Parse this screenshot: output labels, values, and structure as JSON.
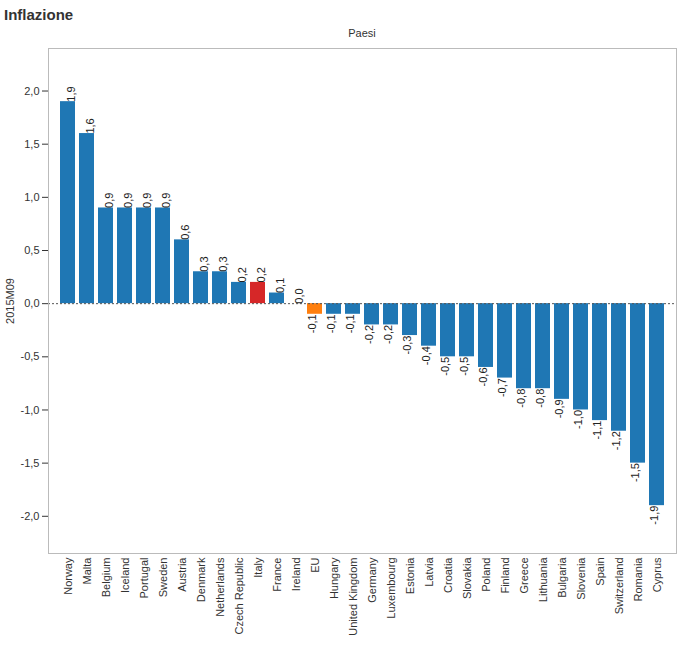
{
  "chart_data": {
    "type": "bar",
    "title": "Inflazione",
    "x_label": "Paesi",
    "y_label": "2015M09",
    "categories": [
      "Norway",
      "Malta",
      "Belgium",
      "Iceland",
      "Portugal",
      "Sweden",
      "Austria",
      "Denmark",
      "Netherlands",
      "Czech Republic",
      "Italy",
      "France",
      "Ireland",
      "EU",
      "Hungary",
      "United Kingdom",
      "Germany",
      "Luxembourg",
      "Estonia",
      "Latvia",
      "Croatia",
      "Slovakia",
      "Poland",
      "Finland",
      "Greece",
      "Lithuania",
      "Bulgaria",
      "Slovenia",
      "Spain",
      "Switzerland",
      "Romania",
      "Cyprus"
    ],
    "values": [
      1.9,
      1.6,
      0.9,
      0.9,
      0.9,
      0.9,
      0.6,
      0.3,
      0.3,
      0.2,
      0.2,
      0.1,
      0.0,
      -0.1,
      -0.1,
      -0.1,
      -0.2,
      -0.2,
      -0.3,
      -0.4,
      -0.5,
      -0.5,
      -0.6,
      -0.7,
      -0.8,
      -0.8,
      -0.9,
      -1.0,
      -1.1,
      -1.2,
      -1.5,
      -1.9
    ],
    "value_labels": [
      "1,9",
      "1,6",
      "0,9",
      "0,9",
      "0,9",
      "0,9",
      "0,6",
      "0,3",
      "0,3",
      "0,2",
      "0,2",
      "0,1",
      "0,0",
      "-0,1",
      "-0,1",
      "-0,1",
      "-0,2",
      "-0,2",
      "-0,3",
      "-0,4",
      "-0,5",
      "-0,5",
      "-0,6",
      "-0,7",
      "-0,8",
      "-0,8",
      "-0,9",
      "-1,0",
      "-1,1",
      "-1,2",
      "-1,5",
      "-1,9"
    ],
    "colors": [
      "#1f77b4",
      "#1f77b4",
      "#1f77b4",
      "#1f77b4",
      "#1f77b4",
      "#1f77b4",
      "#1f77b4",
      "#1f77b4",
      "#1f77b4",
      "#1f77b4",
      "#d62728",
      "#1f77b4",
      "#1f77b4",
      "#ff7f0e",
      "#1f77b4",
      "#1f77b4",
      "#1f77b4",
      "#1f77b4",
      "#1f77b4",
      "#1f77b4",
      "#1f77b4",
      "#1f77b4",
      "#1f77b4",
      "#1f77b4",
      "#1f77b4",
      "#1f77b4",
      "#1f77b4",
      "#1f77b4",
      "#1f77b4",
      "#1f77b4",
      "#1f77b4",
      "#1f77b4"
    ],
    "ylim": [
      -2.35,
      2.4
    ],
    "yticks": [
      {
        "value": -2.0,
        "label": "-2,0"
      },
      {
        "value": -1.5,
        "label": "-1,5"
      },
      {
        "value": -1.0,
        "label": "-1,0"
      },
      {
        "value": -0.5,
        "label": "-0,5"
      },
      {
        "value": 0.0,
        "label": "0,0"
      },
      {
        "value": 0.5,
        "label": "0,5"
      },
      {
        "value": 1.0,
        "label": "1,0"
      },
      {
        "value": 1.5,
        "label": "1,5"
      },
      {
        "value": 2.0,
        "label": "2,0"
      }
    ],
    "grid": false,
    "data_labels": true
  }
}
